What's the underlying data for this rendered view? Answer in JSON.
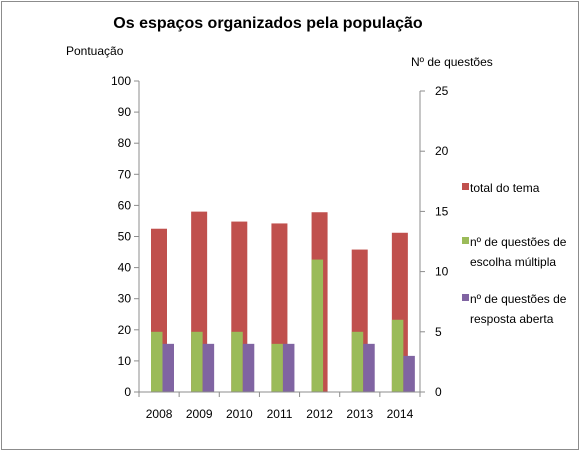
{
  "chart_data": {
    "type": "bar",
    "title": "Os espaços organizados pela população",
    "ylabel_left": "Pontuação",
    "ylabel_right": "Nº de questões",
    "categories": [
      "2008",
      "2009",
      "2010",
      "2011",
      "2012",
      "2013",
      "2014"
    ],
    "ylim_left": [
      0,
      100
    ],
    "yticks_left": [
      "0",
      "10",
      "20",
      "30",
      "40",
      "50",
      "60",
      "70",
      "80",
      "90",
      "100"
    ],
    "ylim_right": [
      0,
      25
    ],
    "yticks_right": [
      "0",
      "5",
      "10",
      "15",
      "20",
      "25"
    ],
    "grid": false,
    "legend_position": "right",
    "series": [
      {
        "name": "total do tema",
        "axis": "left",
        "color": "#c0504d",
        "values": [
          52.5,
          58,
          54.8,
          54.2,
          57.8,
          45.8,
          51.2
        ]
      },
      {
        "name": "nº de questões de escolha múltipla",
        "axis": "right",
        "color": "#9bbb59",
        "values": [
          5,
          5,
          5,
          4,
          11,
          5,
          6
        ]
      },
      {
        "name": "nº de questões de resposta aberta",
        "axis": "right",
        "color": "#8064a2",
        "values": [
          4,
          4,
          4,
          4,
          0,
          4,
          3
        ]
      }
    ],
    "legend": [
      {
        "lines": [
          "total do tema"
        ],
        "color": "#c0504d"
      },
      {
        "lines": [
          "nº de questões de",
          "escolha múltipla"
        ],
        "color": "#9bbb59"
      },
      {
        "lines": [
          "nº de questões de",
          "resposta aberta"
        ],
        "color": "#8064a2"
      }
    ]
  }
}
